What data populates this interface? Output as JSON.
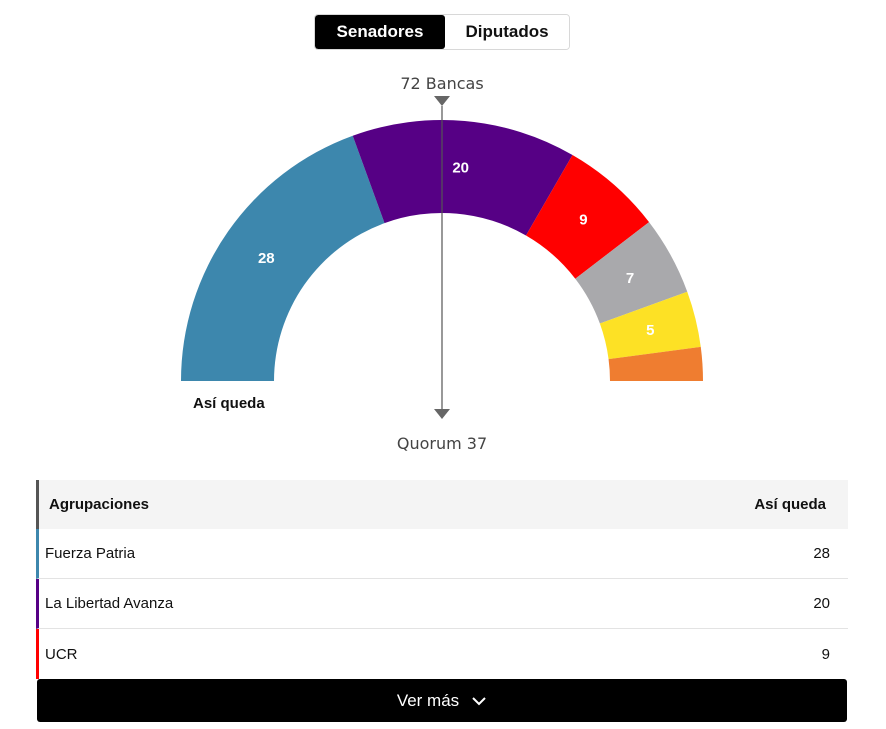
{
  "toggle": {
    "options": [
      "Senadores",
      "Diputados"
    ],
    "active": "Senadores"
  },
  "chart_data": {
    "type": "pie",
    "variant": "half-donut-parliament",
    "top_label": "72 Bancas",
    "bottom_label": "Quorum 37",
    "caption": "Así queda",
    "total": 72,
    "quorum": 37,
    "slices": [
      {
        "name": "Fuerza Patria",
        "value": 28,
        "color": "#3d87ad",
        "label": "28"
      },
      {
        "name": "La Libertad Avanza",
        "value": 20,
        "color": "#560085",
        "label": "20"
      },
      {
        "name": "UCR",
        "value": 9,
        "color": "#ff0000",
        "label": "9"
      },
      {
        "name": "",
        "value": 7,
        "color": "#a9a9ac",
        "label": "7"
      },
      {
        "name": "",
        "value": 5,
        "color": "#fde125",
        "label": "5"
      },
      {
        "name": "",
        "value": 3,
        "color": "#ef7d30",
        "label": ""
      }
    ]
  },
  "table": {
    "headers": [
      "Agrupaciones",
      "Así queda"
    ],
    "rows": [
      {
        "name": "Fuerza Patria",
        "value": "28",
        "color": "#3d87ad"
      },
      {
        "name": "La Libertad Avanza",
        "value": "20",
        "color": "#560085"
      },
      {
        "name": "UCR",
        "value": "9",
        "color": "#ff0000"
      }
    ]
  },
  "more_button": {
    "label": "Ver más",
    "icon": "chevron-down-icon"
  }
}
